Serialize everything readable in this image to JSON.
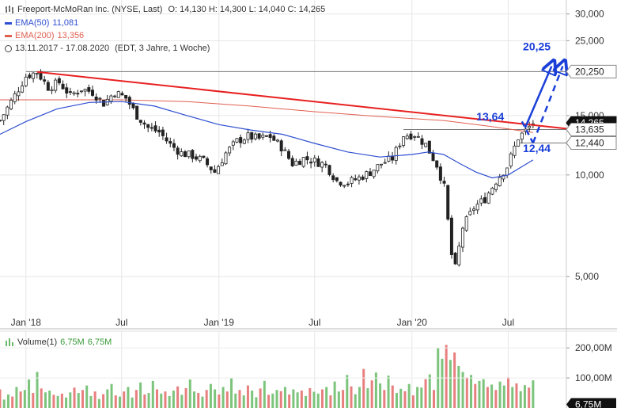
{
  "header": {
    "instrument": "Freeport-McMoRan Inc. (NYSE, Last)",
    "ohlc": "O: 14,130  H: 14,300  L: 14,040  C: 14,265",
    "ema50_label": "EMA(50)",
    "ema50_value": "11,081",
    "ema200_label": "EMA(200)",
    "ema200_value": "13,356",
    "period": "13.11.2017 - 17.08.2020",
    "period_note": "(EDT, 3 Jahre, 1 Woche)",
    "volume_label": "Volume(1)",
    "volume_value1": "6,75M",
    "volume_value2": "6,75M"
  },
  "colors": {
    "ema50": "#2f4fd0",
    "ema200": "#e06050",
    "trendline": "#e82020",
    "annotation": "#1a3fd8",
    "candle_up": "#ffffff",
    "candle_down": "#222222",
    "volume_up": "#7cc47c",
    "volume_down": "#e87f7f"
  },
  "chart_data": {
    "type": "candlestick",
    "scale": "log",
    "ylim": [
      3.5,
      33
    ],
    "xlim": [
      "2017-11-13",
      "2020-10-19"
    ],
    "y_ticks": [
      {
        "value": 30,
        "label": "30,000"
      },
      {
        "value": 25,
        "label": "25,000"
      },
      {
        "value": 15,
        "label": "15,000"
      },
      {
        "value": 10,
        "label": "10,000"
      },
      {
        "value": 5,
        "label": "5,000"
      }
    ],
    "x_ticks": [
      {
        "date": "2018-01-01",
        "label": "Jan '18"
      },
      {
        "date": "2018-07-01",
        "label": "Jul"
      },
      {
        "date": "2019-01-01",
        "label": "Jan '19"
      },
      {
        "date": "2019-07-01",
        "label": "Jul"
      },
      {
        "date": "2020-01-01",
        "label": "Jan '20"
      },
      {
        "date": "2020-07-01",
        "label": "Jul"
      }
    ],
    "price_markers": [
      {
        "value": 20.25,
        "label": "20,250",
        "style": "light"
      },
      {
        "value": 14.265,
        "label": "14,265",
        "style": "dark"
      },
      {
        "value": 13.635,
        "label": "13,635",
        "style": "light"
      },
      {
        "value": 12.44,
        "label": "12,440",
        "style": "light"
      }
    ],
    "close_series": [
      {
        "d": "2017-11-13",
        "v": 14.5
      },
      {
        "d": "2017-12-01",
        "v": 16.2
      },
      {
        "d": "2018-01-01",
        "v": 19.6
      },
      {
        "d": "2018-01-22",
        "v": 20.2
      },
      {
        "d": "2018-02-12",
        "v": 18.2
      },
      {
        "d": "2018-03-05",
        "v": 18.8
      },
      {
        "d": "2018-03-26",
        "v": 17.2
      },
      {
        "d": "2018-04-16",
        "v": 18.0
      },
      {
        "d": "2018-05-07",
        "v": 17.6
      },
      {
        "d": "2018-05-28",
        "v": 16.3
      },
      {
        "d": "2018-06-18",
        "v": 17.6
      },
      {
        "d": "2018-07-09",
        "v": 16.9
      },
      {
        "d": "2018-07-30",
        "v": 15.0
      },
      {
        "d": "2018-08-20",
        "v": 13.8
      },
      {
        "d": "2018-09-10",
        "v": 13.4
      },
      {
        "d": "2018-10-01",
        "v": 12.3
      },
      {
        "d": "2018-10-22",
        "v": 11.6
      },
      {
        "d": "2018-11-12",
        "v": 11.4
      },
      {
        "d": "2018-12-03",
        "v": 11.0
      },
      {
        "d": "2018-12-24",
        "v": 10.2
      },
      {
        "d": "2019-01-14",
        "v": 11.6
      },
      {
        "d": "2019-02-04",
        "v": 12.6
      },
      {
        "d": "2019-02-25",
        "v": 13.0
      },
      {
        "d": "2019-03-18",
        "v": 12.8
      },
      {
        "d": "2019-04-08",
        "v": 13.0
      },
      {
        "d": "2019-04-29",
        "v": 12.1
      },
      {
        "d": "2019-05-20",
        "v": 10.8
      },
      {
        "d": "2019-06-10",
        "v": 11.2
      },
      {
        "d": "2019-07-01",
        "v": 11.0
      },
      {
        "d": "2019-07-22",
        "v": 10.7
      },
      {
        "d": "2019-08-12",
        "v": 9.6
      },
      {
        "d": "2019-09-02",
        "v": 9.5
      },
      {
        "d": "2019-09-23",
        "v": 9.8
      },
      {
        "d": "2019-10-14",
        "v": 10.2
      },
      {
        "d": "2019-11-04",
        "v": 10.8
      },
      {
        "d": "2019-11-25",
        "v": 11.2
      },
      {
        "d": "2019-12-16",
        "v": 13.1
      },
      {
        "d": "2020-01-06",
        "v": 13.2
      },
      {
        "d": "2020-01-27",
        "v": 12.3
      },
      {
        "d": "2020-02-17",
        "v": 10.7
      },
      {
        "d": "2020-03-02",
        "v": 9.2
      },
      {
        "d": "2020-03-16",
        "v": 5.8
      },
      {
        "d": "2020-03-23",
        "v": 5.3
      },
      {
        "d": "2020-04-06",
        "v": 7.0
      },
      {
        "d": "2020-04-27",
        "v": 8.0
      },
      {
        "d": "2020-05-18",
        "v": 8.5
      },
      {
        "d": "2020-06-08",
        "v": 9.6
      },
      {
        "d": "2020-06-29",
        "v": 10.6
      },
      {
        "d": "2020-07-20",
        "v": 12.9
      },
      {
        "d": "2020-08-03",
        "v": 13.5
      },
      {
        "d": "2020-08-17",
        "v": 14.27
      }
    ],
    "ema50_series": [
      {
        "d": "2017-11-13",
        "v": 13.2
      },
      {
        "d": "2018-01-01",
        "v": 14.4
      },
      {
        "d": "2018-03-01",
        "v": 15.7
      },
      {
        "d": "2018-05-01",
        "v": 16.4
      },
      {
        "d": "2018-07-01",
        "v": 16.5
      },
      {
        "d": "2018-09-01",
        "v": 16.0
      },
      {
        "d": "2018-11-01",
        "v": 15.0
      },
      {
        "d": "2019-01-01",
        "v": 14.1
      },
      {
        "d": "2019-03-01",
        "v": 13.6
      },
      {
        "d": "2019-05-01",
        "v": 13.2
      },
      {
        "d": "2019-07-01",
        "v": 12.4
      },
      {
        "d": "2019-09-01",
        "v": 11.7
      },
      {
        "d": "2019-11-01",
        "v": 11.3
      },
      {
        "d": "2020-01-01",
        "v": 11.5
      },
      {
        "d": "2020-02-01",
        "v": 11.7
      },
      {
        "d": "2020-03-01",
        "v": 11.5
      },
      {
        "d": "2020-04-01",
        "v": 10.8
      },
      {
        "d": "2020-05-01",
        "v": 10.2
      },
      {
        "d": "2020-06-01",
        "v": 9.8
      },
      {
        "d": "2020-07-01",
        "v": 10.0
      },
      {
        "d": "2020-08-17",
        "v": 11.08
      }
    ],
    "ema200_series": [
      {
        "d": "2017-11-13",
        "v": 16.7
      },
      {
        "d": "2018-03-01",
        "v": 16.7
      },
      {
        "d": "2018-07-01",
        "v": 16.7
      },
      {
        "d": "2018-11-01",
        "v": 16.5
      },
      {
        "d": "2019-03-01",
        "v": 16.0
      },
      {
        "d": "2019-07-01",
        "v": 15.4
      },
      {
        "d": "2019-11-01",
        "v": 14.9
      },
      {
        "d": "2020-03-01",
        "v": 14.5
      },
      {
        "d": "2020-06-01",
        "v": 13.9
      },
      {
        "d": "2020-08-17",
        "v": 13.36
      }
    ],
    "trendline": [
      {
        "d": "2018-01-22",
        "v": 20.2
      },
      {
        "d": "2020-10-19",
        "v": 13.72
      }
    ],
    "support_lines": [
      {
        "value": 20.25,
        "from": "2018-01-01"
      },
      {
        "value": 13.635,
        "from": "2019-12-16"
      },
      {
        "value": 12.44,
        "from": "2020-07-20"
      }
    ],
    "annotations": [
      {
        "text": "20,25",
        "d": "2020-08-24",
        "v": 23.4
      },
      {
        "text": "13,64",
        "d": "2020-05-28",
        "v": 14.5
      },
      {
        "text": "12,44",
        "d": "2020-08-24",
        "v": 11.7
      }
    ],
    "volume": {
      "ylim": [
        0,
        240
      ],
      "unit": "M",
      "y_ticks": [
        {
          "value": 200,
          "label": "200,00M"
        },
        {
          "value": 100,
          "label": "100,00M"
        }
      ],
      "current_label": "6,75M",
      "values": [
        62,
        28,
        45,
        38,
        70,
        55,
        60,
        95,
        50,
        120,
        65,
        52,
        58,
        44,
        40,
        48,
        35,
        52,
        68,
        50,
        60,
        75,
        40,
        55,
        30,
        46,
        62,
        80,
        42,
        38,
        55,
        70,
        35,
        60,
        85,
        45,
        50,
        90,
        62,
        48,
        55,
        40,
        58,
        72,
        44,
        66,
        95,
        55,
        50,
        38,
        60,
        80,
        62,
        45,
        70,
        55,
        100,
        48,
        60,
        42,
        75,
        58,
        36,
        65,
        90,
        44,
        48,
        60,
        56,
        70,
        45,
        62,
        52,
        58,
        40,
        66,
        54,
        48,
        62,
        70,
        42,
        88,
        55,
        60,
        110,
        72,
        46,
        70,
        130,
        66,
        92,
        118,
        82,
        60,
        108,
        75,
        50,
        64,
        56,
        80,
        42,
        70,
        68,
        96,
        112,
        60,
        200,
        164,
        210,
        160,
        185,
        140,
        120,
        102,
        110,
        80,
        90,
        96,
        70,
        78,
        60,
        88,
        75,
        102,
        70,
        82,
        56,
        76,
        68,
        92
      ]
    }
  }
}
